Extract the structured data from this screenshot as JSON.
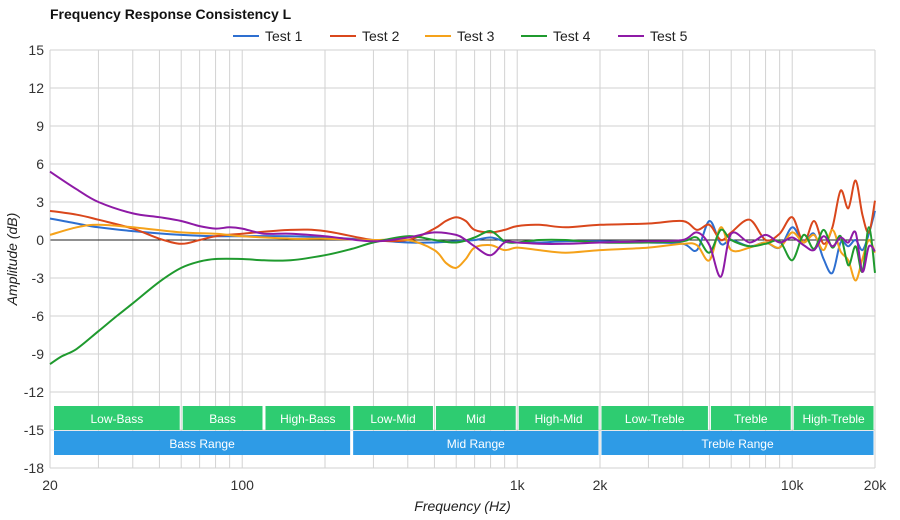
{
  "chart_data": {
    "type": "line",
    "title": "Frequency Response Consistency L",
    "xlabel": "Frequency (Hz)",
    "ylabel": "Amplitude (dB)",
    "x_scale": "log",
    "xlim": [
      20,
      20000
    ],
    "ylim": [
      -18,
      15
    ],
    "grid": true,
    "legend_position": "top-center",
    "x_ticks": [
      {
        "value": 20,
        "label": "20"
      },
      {
        "value": 100,
        "label": "100"
      },
      {
        "value": 1000,
        "label": "1k"
      },
      {
        "value": 2000,
        "label": "2k"
      },
      {
        "value": 10000,
        "label": "10k"
      },
      {
        "value": 20000,
        "label": "20k"
      }
    ],
    "y_ticks": [
      15,
      12,
      9,
      6,
      3,
      0,
      -3,
      -6,
      -9,
      -12,
      -15,
      -18
    ],
    "bands": [
      {
        "label": "Low-Bass",
        "from": 20,
        "to": 60,
        "row": 1
      },
      {
        "label": "Bass",
        "from": 60,
        "to": 120,
        "row": 1
      },
      {
        "label": "High-Bass",
        "from": 120,
        "to": 250,
        "row": 1
      },
      {
        "label": "Low-Mid",
        "from": 250,
        "to": 500,
        "row": 1
      },
      {
        "label": "Mid",
        "from": 500,
        "to": 1000,
        "row": 1
      },
      {
        "label": "High-Mid",
        "from": 1000,
        "to": 2000,
        "row": 1
      },
      {
        "label": "Low-Treble",
        "from": 2000,
        "to": 5000,
        "row": 1
      },
      {
        "label": "Treble",
        "from": 5000,
        "to": 10000,
        "row": 1
      },
      {
        "label": "High-Treble",
        "from": 10000,
        "to": 20000,
        "row": 1
      },
      {
        "label": "Bass Range",
        "from": 20,
        "to": 250,
        "row": 2
      },
      {
        "label": "Mid Range",
        "from": 250,
        "to": 2000,
        "row": 2
      },
      {
        "label": "Treble Range",
        "from": 2000,
        "to": 20000,
        "row": 2
      }
    ],
    "band_colors": {
      "row1": "#2ecc71",
      "row2": "#2e9be6"
    },
    "series": [
      {
        "name": "Test 1",
        "color": "#2e6fd0",
        "x": [
          20,
          25,
          30,
          40,
          60,
          80,
          100,
          150,
          200,
          300,
          400,
          500,
          600,
          700,
          800,
          900,
          1000,
          1200,
          1500,
          2000,
          3000,
          4000,
          4500,
          5000,
          5500,
          6000,
          7000,
          8000,
          9000,
          10000,
          11000,
          12000,
          13000,
          14000,
          15000,
          16000,
          17000,
          18000,
          19000,
          20000
        ],
        "y": [
          1.7,
          1.3,
          1.0,
          0.7,
          0.4,
          0.3,
          0.3,
          0.3,
          0.2,
          0.0,
          -0.2,
          -0.2,
          -0.1,
          0.0,
          0.2,
          -0.1,
          -0.2,
          -0.2,
          -0.1,
          -0.1,
          -0.2,
          -0.3,
          -0.8,
          1.5,
          -0.3,
          0.0,
          -0.5,
          -0.2,
          -0.6,
          1.0,
          -0.2,
          0.5,
          -1.5,
          -2.6,
          -0.2,
          -0.5,
          0.0,
          -0.8,
          0.5,
          2.3
        ]
      },
      {
        "name": "Test 2",
        "color": "#d9471c",
        "x": [
          20,
          25,
          30,
          40,
          50,
          60,
          70,
          80,
          100,
          150,
          200,
          300,
          400,
          500,
          550,
          600,
          650,
          700,
          800,
          900,
          1000,
          1200,
          1500,
          2000,
          3000,
          4000,
          4500,
          5000,
          5500,
          6000,
          7000,
          8000,
          9000,
          10000,
          11000,
          12000,
          13000,
          14000,
          15000,
          16000,
          17000,
          18000,
          19000,
          20000
        ],
        "y": [
          2.3,
          2.0,
          1.6,
          0.9,
          0.1,
          -0.3,
          0.0,
          0.3,
          0.5,
          0.8,
          0.7,
          0.0,
          0.0,
          0.9,
          1.5,
          1.8,
          1.5,
          0.8,
          0.6,
          0.8,
          1.1,
          1.2,
          1.0,
          1.2,
          1.3,
          1.5,
          0.8,
          1.2,
          0.0,
          0.6,
          1.6,
          0.0,
          0.5,
          1.8,
          -0.2,
          1.5,
          -0.3,
          1.0,
          3.9,
          2.5,
          4.7,
          2.0,
          0.6,
          3.1
        ]
      },
      {
        "name": "Test 3",
        "color": "#f5a21a",
        "x": [
          20,
          25,
          30,
          40,
          60,
          80,
          100,
          150,
          200,
          300,
          400,
          500,
          550,
          600,
          650,
          700,
          800,
          900,
          1000,
          1200,
          1500,
          2000,
          3000,
          4000,
          4500,
          5000,
          5500,
          6000,
          7000,
          8000,
          9000,
          10000,
          11000,
          12000,
          13000,
          14000,
          15000,
          16000,
          17000,
          18000,
          19000,
          20000
        ],
        "y": [
          0.4,
          1.0,
          1.2,
          1.0,
          0.6,
          0.5,
          0.3,
          0.1,
          0.1,
          0.0,
          0.0,
          -0.8,
          -1.8,
          -2.2,
          -1.5,
          -0.6,
          -0.4,
          -0.8,
          -0.6,
          -0.8,
          -1.0,
          -0.8,
          -0.6,
          -0.3,
          -0.4,
          -1.6,
          1.0,
          -0.8,
          -0.6,
          -0.2,
          -0.6,
          0.6,
          -0.2,
          0.4,
          -0.8,
          0.8,
          -0.9,
          -1.6,
          -3.2,
          -1.5,
          0.0,
          -1.0
        ]
      },
      {
        "name": "Test 4",
        "color": "#1f9a2e",
        "x": [
          20,
          22,
          25,
          30,
          35,
          40,
          50,
          60,
          70,
          80,
          100,
          120,
          150,
          200,
          250,
          300,
          400,
          500,
          600,
          700,
          800,
          900,
          1000,
          1200,
          1500,
          2000,
          3000,
          4000,
          4500,
          5000,
          5500,
          6000,
          7000,
          8000,
          9000,
          10000,
          11000,
          12000,
          13000,
          14000,
          15000,
          16000,
          17000,
          18000,
          19000,
          20000
        ],
        "y": [
          -9.8,
          -9.2,
          -8.6,
          -7.2,
          -6.0,
          -5.0,
          -3.3,
          -2.2,
          -1.7,
          -1.5,
          -1.5,
          -1.6,
          -1.6,
          -1.2,
          -0.7,
          -0.2,
          0.3,
          0.0,
          -0.2,
          0.2,
          0.7,
          -0.1,
          -0.2,
          0.0,
          0.0,
          -0.2,
          -0.2,
          -0.1,
          0.2,
          -1.0,
          0.8,
          0.0,
          -0.5,
          -0.3,
          -0.1,
          -1.6,
          0.4,
          -0.7,
          0.8,
          -0.6,
          0.3,
          -2.0,
          -0.5,
          -2.5,
          1.0,
          -2.6
        ]
      },
      {
        "name": "Test 5",
        "color": "#8e1aa6",
        "x": [
          20,
          25,
          30,
          40,
          50,
          60,
          70,
          80,
          90,
          100,
          120,
          150,
          200,
          300,
          400,
          500,
          600,
          650,
          700,
          800,
          900,
          1000,
          1200,
          1500,
          2000,
          3000,
          4000,
          4500,
          5000,
          5500,
          6000,
          7000,
          8000,
          9000,
          10000,
          11000,
          12000,
          13000,
          14000,
          15000,
          16000,
          17000,
          18000,
          19000,
          20000
        ],
        "y": [
          5.4,
          4.0,
          3.0,
          2.1,
          1.8,
          1.5,
          1.1,
          0.9,
          1.0,
          0.9,
          0.5,
          0.5,
          0.3,
          -0.1,
          0.2,
          0.6,
          0.4,
          0.0,
          -0.5,
          -1.2,
          -0.2,
          -0.2,
          -0.3,
          -0.3,
          -0.2,
          -0.1,
          0.0,
          0.6,
          -0.4,
          -2.9,
          0.5,
          -0.2,
          0.4,
          -0.2,
          0.2,
          -0.4,
          -0.8,
          0.3,
          -0.5,
          0.2,
          -0.2,
          0.6,
          -2.5,
          -0.5,
          -0.9
        ]
      }
    ]
  }
}
